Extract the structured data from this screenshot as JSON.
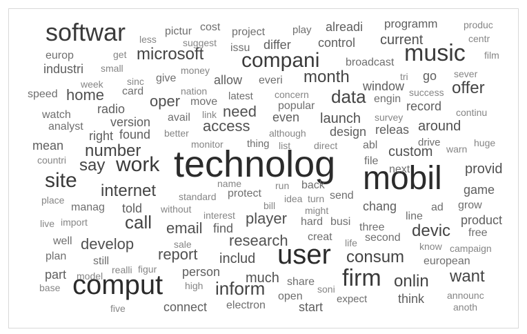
{
  "chart_data": {
    "type": "wordcloud",
    "words": [
      {
        "text": "technolog",
        "weight": 10
      },
      {
        "text": "mobil",
        "weight": 9.5
      },
      {
        "text": "user",
        "weight": 8
      },
      {
        "text": "comput",
        "weight": 8
      },
      {
        "text": "firm",
        "weight": 7
      },
      {
        "text": "softwar",
        "weight": 7
      },
      {
        "text": "music",
        "weight": 7
      },
      {
        "text": "site",
        "weight": 6.5
      },
      {
        "text": "work",
        "weight": 6.5
      },
      {
        "text": "compani",
        "weight": 6.5
      },
      {
        "text": "inform",
        "weight": 5.5
      },
      {
        "text": "data",
        "weight": 5.5
      },
      {
        "text": "microsoft",
        "weight": 5
      },
      {
        "text": "internet",
        "weight": 5
      },
      {
        "text": "number",
        "weight": 5
      },
      {
        "text": "call",
        "weight": 5
      },
      {
        "text": "say",
        "weight": 5
      },
      {
        "text": "month",
        "weight": 5
      },
      {
        "text": "offer",
        "weight": 5
      },
      {
        "text": "onlin",
        "weight": 5
      },
      {
        "text": "want",
        "weight": 5
      },
      {
        "text": "devic",
        "weight": 5
      },
      {
        "text": "consum",
        "weight": 5
      },
      {
        "text": "home",
        "weight": 4.5
      },
      {
        "text": "oper",
        "weight": 4.5
      },
      {
        "text": "need",
        "weight": 4.5
      },
      {
        "text": "access",
        "weight": 4.5
      },
      {
        "text": "email",
        "weight": 4.5
      },
      {
        "text": "player",
        "weight": 4.5
      },
      {
        "text": "research",
        "weight": 4.5
      },
      {
        "text": "develop",
        "weight": 4.5
      },
      {
        "text": "report",
        "weight": 4.5
      },
      {
        "text": "much",
        "weight": 4
      },
      {
        "text": "launch",
        "weight": 4
      },
      {
        "text": "around",
        "weight": 4
      },
      {
        "text": "custom",
        "weight": 4
      },
      {
        "text": "current",
        "weight": 4
      },
      {
        "text": "provid",
        "weight": 4
      },
      {
        "text": "includ",
        "weight": 4
      },
      {
        "text": "record",
        "weight": 3.5
      },
      {
        "text": "connect",
        "weight": 3.5
      },
      {
        "text": "start",
        "weight": 3.5
      },
      {
        "text": "industri",
        "weight": 3.5
      },
      {
        "text": "radio",
        "weight": 3.5
      },
      {
        "text": "version",
        "weight": 3.5
      },
      {
        "text": "found",
        "weight": 3.5
      },
      {
        "text": "mean",
        "weight": 3.5
      },
      {
        "text": "right",
        "weight": 3.5
      },
      {
        "text": "told",
        "weight": 3.5
      },
      {
        "text": "find",
        "weight": 3.5
      },
      {
        "text": "even",
        "weight": 3.5
      },
      {
        "text": "design",
        "weight": 3.5
      },
      {
        "text": "differ",
        "weight": 3.5
      },
      {
        "text": "alreadi",
        "weight": 3.5
      },
      {
        "text": "control",
        "weight": 3.5
      },
      {
        "text": "chang",
        "weight": 3.5
      },
      {
        "text": "product",
        "weight": 3.5
      },
      {
        "text": "game",
        "weight": 3.5
      },
      {
        "text": "person",
        "weight": 3.5
      },
      {
        "text": "think",
        "weight": 3.5
      },
      {
        "text": "releas",
        "weight": 3.5
      },
      {
        "text": "window",
        "weight": 3.5
      },
      {
        "text": "go",
        "weight": 3.5
      },
      {
        "text": "allow",
        "weight": 3.5
      },
      {
        "text": "part",
        "weight": 3.5
      },
      {
        "text": "programm",
        "weight": 3.2
      },
      {
        "text": "project",
        "weight": 3
      },
      {
        "text": "popular",
        "weight": 3
      },
      {
        "text": "avail",
        "weight": 3
      },
      {
        "text": "give",
        "weight": 3
      },
      {
        "text": "move",
        "weight": 3
      },
      {
        "text": "protect",
        "weight": 3
      },
      {
        "text": "send",
        "weight": 3
      },
      {
        "text": "back",
        "weight": 3
      },
      {
        "text": "file",
        "weight": 3
      },
      {
        "text": "next",
        "weight": 3
      },
      {
        "text": "busi",
        "weight": 3
      },
      {
        "text": "creat",
        "weight": 3
      },
      {
        "text": "second",
        "weight": 3
      },
      {
        "text": "free",
        "weight": 3
      },
      {
        "text": "ad",
        "weight": 3
      },
      {
        "text": "grow",
        "weight": 3
      },
      {
        "text": "open",
        "weight": 3
      },
      {
        "text": "electron",
        "weight": 3
      },
      {
        "text": "european",
        "weight": 3
      },
      {
        "text": "card",
        "weight": 3
      },
      {
        "text": "speed",
        "weight": 3
      },
      {
        "text": "pictur",
        "weight": 3
      },
      {
        "text": "cost",
        "weight": 3
      },
      {
        "text": "abl",
        "weight": 3
      },
      {
        "text": "watch",
        "weight": 3
      },
      {
        "text": "europ",
        "weight": 3
      },
      {
        "text": "everi",
        "weight": 3
      },
      {
        "text": "broadcast",
        "weight": 3
      },
      {
        "text": "well",
        "weight": 3
      },
      {
        "text": "hard",
        "weight": 3
      },
      {
        "text": "share",
        "weight": 3
      },
      {
        "text": "issu",
        "weight": 3
      },
      {
        "text": "three",
        "weight": 3
      },
      {
        "text": "engin",
        "weight": 3
      },
      {
        "text": "line",
        "weight": 3
      },
      {
        "text": "analyst",
        "weight": 3
      },
      {
        "text": "still",
        "weight": 3
      },
      {
        "text": "plan",
        "weight": 3
      },
      {
        "text": "manag",
        "weight": 3
      },
      {
        "text": "thing",
        "weight": 3
      },
      {
        "text": "drive",
        "weight": 3
      },
      {
        "text": "play",
        "weight": 3
      },
      {
        "text": "latest",
        "weight": 3
      },
      {
        "text": "expect",
        "weight": 3
      },
      {
        "text": "sale",
        "weight": 2.5
      },
      {
        "text": "week",
        "weight": 2.5
      },
      {
        "text": "get",
        "weight": 2.5
      },
      {
        "text": "less",
        "weight": 2.5
      },
      {
        "text": "suggest",
        "weight": 2.5
      },
      {
        "text": "sinc",
        "weight": 2.5
      },
      {
        "text": "money",
        "weight": 2.5
      },
      {
        "text": "small",
        "weight": 2.5
      },
      {
        "text": "nation",
        "weight": 2.5
      },
      {
        "text": "concern",
        "weight": 2.5
      },
      {
        "text": "success",
        "weight": 2.5
      },
      {
        "text": "tri",
        "weight": 2.5
      },
      {
        "text": "sever",
        "weight": 2.5
      },
      {
        "text": "film",
        "weight": 2.5
      },
      {
        "text": "centr",
        "weight": 2.5
      },
      {
        "text": "produc",
        "weight": 2.5
      },
      {
        "text": "continu",
        "weight": 2.5
      },
      {
        "text": "survey",
        "weight": 2.5
      },
      {
        "text": "link",
        "weight": 2.5
      },
      {
        "text": "better",
        "weight": 2.5
      },
      {
        "text": "although",
        "weight": 2.5
      },
      {
        "text": "monitor",
        "weight": 2.5
      },
      {
        "text": "list",
        "weight": 2.5
      },
      {
        "text": "direct",
        "weight": 2.5
      },
      {
        "text": "warn",
        "weight": 2.5
      },
      {
        "text": "huge",
        "weight": 2.5
      },
      {
        "text": "countri",
        "weight": 2.5
      },
      {
        "text": "name",
        "weight": 2.5
      },
      {
        "text": "run",
        "weight": 2.5
      },
      {
        "text": "turn",
        "weight": 2.5
      },
      {
        "text": "idea",
        "weight": 2.5
      },
      {
        "text": "might",
        "weight": 2.5
      },
      {
        "text": "bill",
        "weight": 2.5
      },
      {
        "text": "place",
        "weight": 2.5
      },
      {
        "text": "standard",
        "weight": 2.5
      },
      {
        "text": "without",
        "weight": 2.5
      },
      {
        "text": "interest",
        "weight": 2.5
      },
      {
        "text": "import",
        "weight": 2.5
      },
      {
        "text": "live",
        "weight": 2.5
      },
      {
        "text": "life",
        "weight": 2.5
      },
      {
        "text": "know",
        "weight": 2.5
      },
      {
        "text": "campaign",
        "weight": 2.5
      },
      {
        "text": "realli",
        "weight": 2.5
      },
      {
        "text": "figur",
        "weight": 2.5
      },
      {
        "text": "model",
        "weight": 2.5
      },
      {
        "text": "high",
        "weight": 2.5
      },
      {
        "text": "soni",
        "weight": 2.5
      },
      {
        "text": "base",
        "weight": 2.5
      },
      {
        "text": "announc",
        "weight": 2.5
      },
      {
        "text": "anoth",
        "weight": 2.5
      },
      {
        "text": "five",
        "weight": 2.5
      }
    ]
  }
}
